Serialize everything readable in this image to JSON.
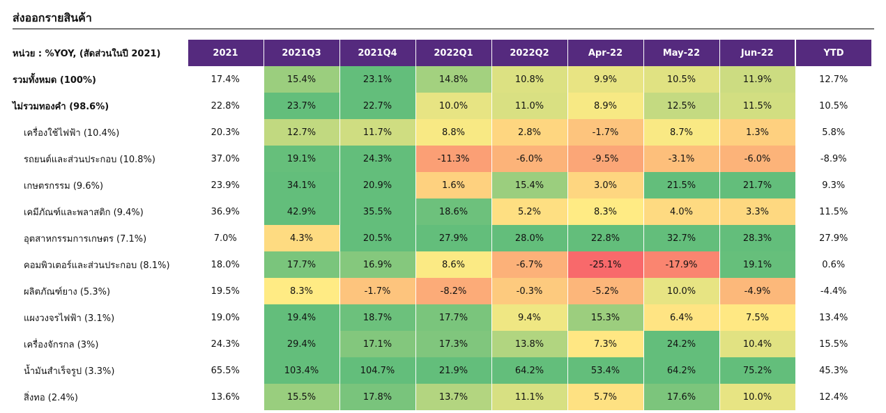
{
  "title": "ส่งออกรายสินค้า",
  "unit_label": "หน่วย : %YOY, (สัดส่วนในปี 2021)",
  "columns": [
    "2021",
    "2021Q3",
    "2021Q4",
    "2022Q1",
    "2022Q2",
    "Apr-22",
    "May-22",
    "Jun-22",
    "YTD"
  ],
  "rows": [
    {
      "label": "รวมทั้งหมด (100%)",
      "bold": true,
      "values": [
        "17.4%",
        "15.4%",
        "23.1%",
        "14.8%",
        "10.8%",
        "9.9%",
        "10.5%",
        "11.9%",
        "12.7%"
      ]
    },
    {
      "label": "ไม่รวมทองคำ (98.6%)",
      "bold": true,
      "values": [
        "22.8%",
        "23.7%",
        "22.7%",
        "10.0%",
        "11.0%",
        "8.9%",
        "12.5%",
        "11.5%",
        "10.5%"
      ]
    },
    {
      "label": "เครื่องใช้ไฟฟ้า (10.4%)",
      "bold": false,
      "values": [
        "20.3%",
        "12.7%",
        "11.7%",
        "8.8%",
        "2.8%",
        "-1.7%",
        "8.7%",
        "1.3%",
        "5.8%"
      ]
    },
    {
      "label": "รถยนต์และส่วนประกอบ (10.8%)",
      "bold": false,
      "values": [
        "37.0%",
        "19.1%",
        "24.3%",
        "-11.3%",
        "-6.0%",
        "-9.5%",
        "-3.1%",
        "-6.0%",
        "-8.9%"
      ]
    },
    {
      "label": "เกษตรกรรม (9.6%)",
      "bold": false,
      "values": [
        "23.9%",
        "34.1%",
        "20.9%",
        "1.6%",
        "15.4%",
        "3.0%",
        "21.5%",
        "21.7%",
        "9.3%"
      ]
    },
    {
      "label": "เคมีภัณฑ์และพลาสติก (9.4%)",
      "bold": false,
      "values": [
        "36.9%",
        "42.9%",
        "35.5%",
        "18.6%",
        "5.2%",
        "8.3%",
        "4.0%",
        "3.3%",
        "11.5%"
      ]
    },
    {
      "label": "อุตสาหกรรมการเกษตร (7.1%)",
      "bold": false,
      "values": [
        "7.0%",
        "4.3%",
        "20.5%",
        "27.9%",
        "28.0%",
        "22.8%",
        "32.7%",
        "28.3%",
        "27.9%"
      ]
    },
    {
      "label": "คอมพิวเตอร์และส่วนประกอบ (8.1%)",
      "bold": false,
      "values": [
        "18.0%",
        "17.7%",
        "16.9%",
        "8.6%",
        "-6.7%",
        "-25.1%",
        "-17.9%",
        "19.1%",
        "0.6%"
      ]
    },
    {
      "label": "ผลิตภัณฑ์ยาง (5.3%)",
      "bold": false,
      "values": [
        "19.5%",
        "8.3%",
        "-1.7%",
        "-8.2%",
        "-0.3%",
        "-5.2%",
        "10.0%",
        "-4.9%",
        "-4.4%"
      ]
    },
    {
      "label": "แผงวงจรไฟฟ้า (3.1%)",
      "bold": false,
      "values": [
        "19.0%",
        "19.4%",
        "18.7%",
        "17.7%",
        "9.4%",
        "15.3%",
        "6.4%",
        "7.5%",
        "13.4%"
      ]
    },
    {
      "label": "เครื่องจักรกล (3%)",
      "bold": false,
      "values": [
        "24.3%",
        "29.4%",
        "17.1%",
        "17.3%",
        "13.8%",
        "7.3%",
        "24.2%",
        "10.4%",
        "15.5%"
      ]
    },
    {
      "label": "น้ำมันสำเร็จรูป (3.3%)",
      "bold": false,
      "values": [
        "65.5%",
        "103.4%",
        "104.7%",
        "21.9%",
        "64.2%",
        "53.4%",
        "64.2%",
        "75.2%",
        "45.3%"
      ]
    },
    {
      "label": "สิ่งทอ (2.4%)",
      "bold": false,
      "values": [
        "13.6%",
        "15.5%",
        "17.8%",
        "13.7%",
        "11.1%",
        "5.7%",
        "17.6%",
        "10.0%",
        "12.4%"
      ]
    }
  ],
  "heatmap_colors": {
    "positive_strong": "#63be7b",
    "neutral": "#ffeb84",
    "negative_strong": "#f8696b"
  }
}
